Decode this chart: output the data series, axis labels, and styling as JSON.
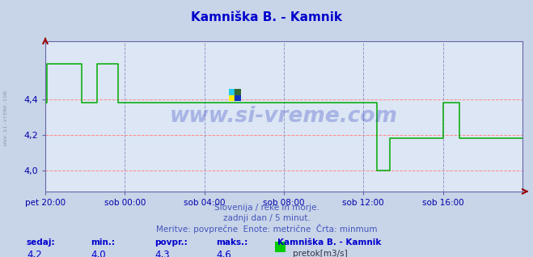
{
  "title": "Kamniška B. - Kamnik",
  "title_color": "#0000cc",
  "bg_color": "#c8d4e8",
  "plot_bg_color": "#dce6f4",
  "grid_color_h": "#ff8888",
  "grid_color_v": "#9999cc",
  "line_color": "#00aa00",
  "axis_color": "#6666aa",
  "tick_color": "#0000aa",
  "ylim": [
    3.88,
    4.73
  ],
  "yticks": [
    4.0,
    4.2,
    4.4
  ],
  "xtick_labels": [
    "pet 20:00",
    "sob 00:00",
    "sob 04:00",
    "sob 08:00",
    "sob 12:00",
    "sob 16:00"
  ],
  "watermark": "www.si-vreme.com",
  "watermark_color": "#2233bb",
  "watermark_alpha": 0.28,
  "subtitle1": "Slovenija / reke in morje.",
  "subtitle2": "zadnji dan / 5 minut.",
  "subtitle3": "Meritve: povprečne  Enote: metrične  Črta: minmum",
  "footer_label1": "sedaj:",
  "footer_val1": "4,2",
  "footer_label2": "min.:",
  "footer_val2": "4,0",
  "footer_label3": "povpr.:",
  "footer_val3": "4,3",
  "footer_label4": "maks.:",
  "footer_val4": "4,6",
  "footer_series": "Kamniška B. - Kamnik",
  "footer_unit": "pretok[m3/s]",
  "legend_color": "#00cc00",
  "sidewater": "www.si-vreme.com",
  "n_points": 289,
  "logo_colors": [
    "#00ccee",
    "#226622",
    "#ffee00",
    "#0033cc"
  ]
}
